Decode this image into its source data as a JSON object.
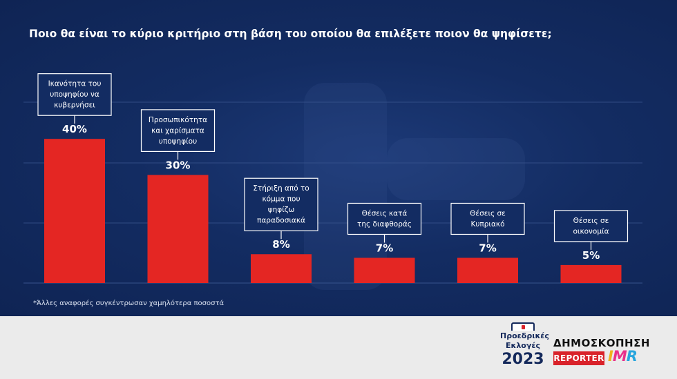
{
  "title": "Ποιο θα είναι το κύριο κριτήριο στη βάση του οποίου θα επιλέξετε ποιον θα ψηφίσετε;",
  "footnote": "*Άλλες αναφορές συγκέντρωσαν χαμηλότερα ποσοστά",
  "chart_data": {
    "type": "bar",
    "categories": [
      [
        "Ικανότητα του",
        "υποψηφίου να",
        "κυβερνήσει"
      ],
      [
        "Προσωπικότητα",
        "και χαρίσματα",
        "υποψηφίου"
      ],
      [
        "Στήριξη από το",
        "κόμμα που",
        "ψηφίζω",
        "παραδοσιακά"
      ],
      [
        "Θέσεις κατά",
        "της διαφθοράς"
      ],
      [
        "Θέσεις σε",
        "Κυπριακό"
      ],
      [
        "Θέσεις σε",
        "οικονομία"
      ]
    ],
    "values": [
      40,
      30,
      8,
      7,
      7,
      5
    ],
    "value_labels": [
      "40%",
      "30%",
      "8%",
      "7%",
      "7%",
      "5%"
    ],
    "ylim": [
      0,
      50
    ],
    "grid": true,
    "bar_color": "#e42623"
  },
  "colors": {
    "background": "#132c62",
    "bar": "#e42623",
    "footer": "#ebebeb"
  },
  "footer": {
    "elections_logo": {
      "line1": "Προεδρικές",
      "line2": "Εκλογές",
      "year": "2023"
    },
    "poll_title": "ΔΗΜΟΣΚΟΠΗΣΗ",
    "reporter": "REPORTER",
    "imr": [
      "I",
      "M",
      "R"
    ]
  }
}
